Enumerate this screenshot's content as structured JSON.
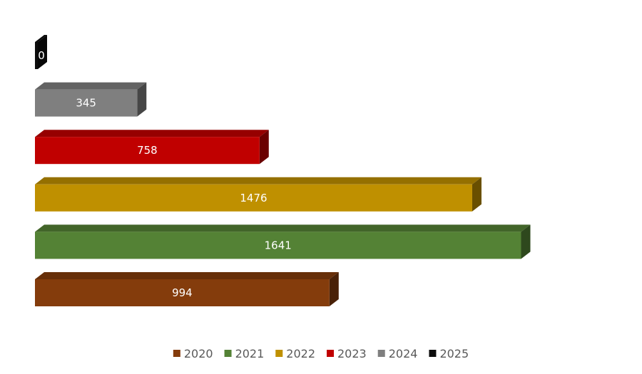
{
  "chart_data": {
    "type": "bar",
    "orientation": "horizontal",
    "three_d": true,
    "categories": [
      "2020",
      "2021",
      "2022",
      "2023",
      "2024",
      "2025"
    ],
    "values": [
      994,
      1641,
      1476,
      758,
      345,
      0
    ],
    "series": [
      {
        "name": "2020",
        "value": 994,
        "color": "#843C0C"
      },
      {
        "name": "2021",
        "value": 1641,
        "color": "#548235"
      },
      {
        "name": "2022",
        "value": 1476,
        "color": "#BF9000"
      },
      {
        "name": "2023",
        "value": 758,
        "color": "#C00000"
      },
      {
        "name": "2024",
        "value": 345,
        "color": "#7F7F7F"
      },
      {
        "name": "2025",
        "value": 0,
        "color": "#0D0D0D"
      }
    ],
    "data_labels": [
      "994",
      "1641",
      "1476",
      "758",
      "345",
      "0"
    ],
    "xlim": [
      0,
      1700
    ],
    "grid": false,
    "axes_visible": false,
    "legend_position": "bottom",
    "title": "",
    "xlabel": "",
    "ylabel": ""
  }
}
